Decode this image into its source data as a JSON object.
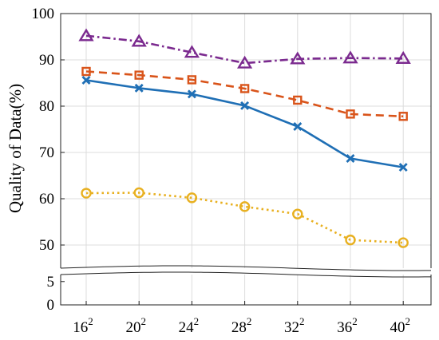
{
  "chart_data": {
    "type": "line",
    "title": "",
    "xlabel": "",
    "ylabel": "Quality of Data(%)",
    "x": [
      "16",
      "20",
      "24",
      "28",
      "32",
      "36",
      "40"
    ],
    "x_exponent": "2",
    "ylim": [
      0,
      100
    ],
    "axis_break": [
      6.5,
      45
    ],
    "yticks_upper": [
      50,
      60,
      70,
      80,
      90,
      100
    ],
    "yticks_lower": [
      0,
      5
    ],
    "grid": true,
    "legend": "none",
    "series": [
      {
        "color": "#7b2a8f",
        "line_style": "dash-dot",
        "marker": "triangle",
        "values": [
          95.2,
          94.0,
          91.6,
          89.3,
          90.2,
          90.4,
          90.3
        ]
      },
      {
        "color": "#d9541a",
        "line_style": "dashed",
        "marker": "square",
        "values": [
          87.5,
          86.7,
          85.7,
          83.8,
          81.3,
          78.3,
          77.8
        ]
      },
      {
        "color": "#1f6fb5",
        "line_style": "solid",
        "marker": "x",
        "values": [
          85.6,
          83.9,
          82.6,
          80.1,
          75.6,
          68.7,
          66.8
        ]
      },
      {
        "color": "#e8b020",
        "line_style": "dotted",
        "marker": "circle",
        "values": [
          61.2,
          61.3,
          60.2,
          58.3,
          56.7,
          51.1,
          50.5
        ]
      }
    ]
  }
}
